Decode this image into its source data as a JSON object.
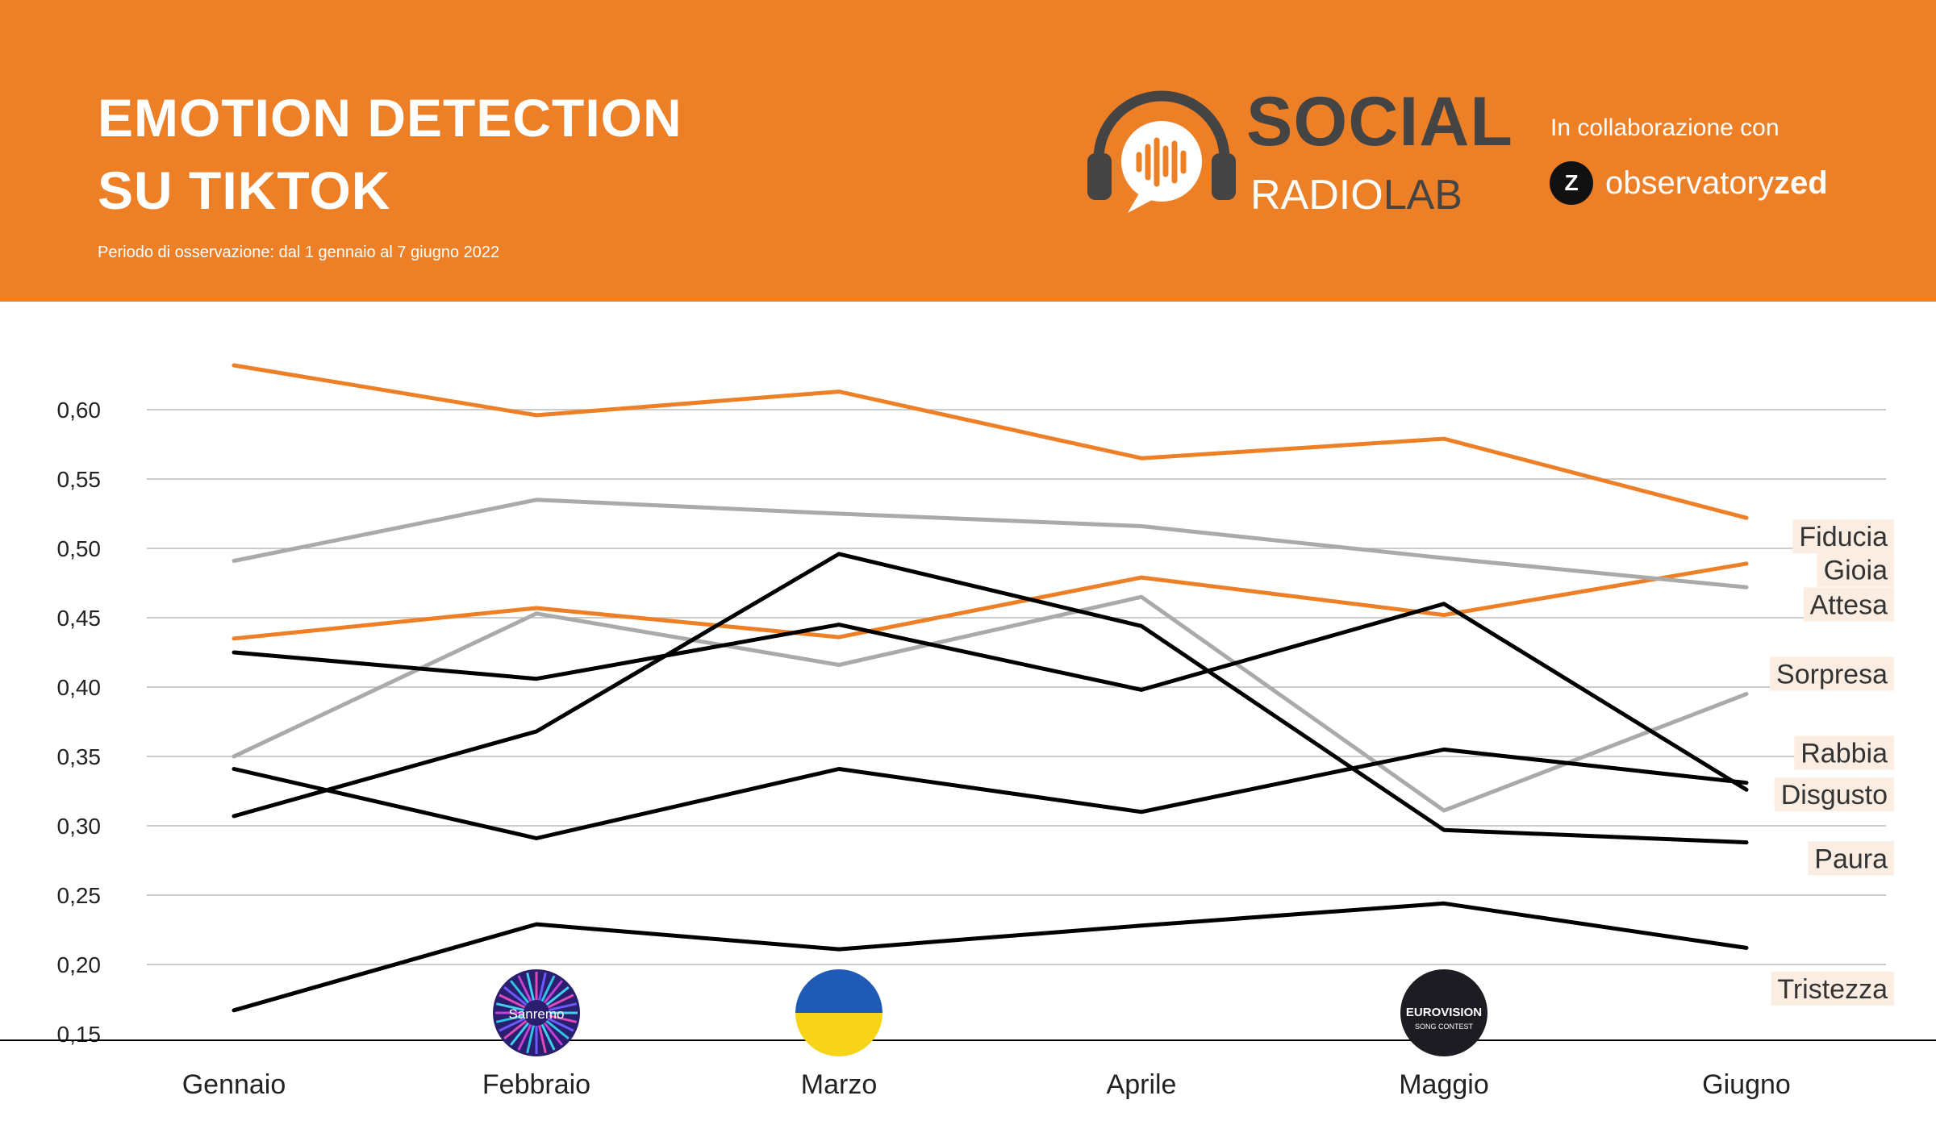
{
  "header": {
    "title_line1": "EMOTION DETECTION",
    "title_line2": "SU TIKTOK",
    "subtitle": "Periodo di osservazione: dal 1 gennaio al 7 giugno 2022",
    "brand_social": "SOCIAL",
    "brand_radio": "RADIO",
    "brand_lab": "LAB",
    "collab_text": "In collaborazione con",
    "partner_icon": "Z",
    "partner_name_light": "observatory",
    "partner_name_bold": "zed",
    "colors": {
      "background": "#ED7F27",
      "text": "#FFFFFF",
      "dark": "#444444"
    }
  },
  "chart_data": {
    "type": "line",
    "categories": [
      "Gennaio",
      "Febbraio",
      "Marzo",
      "Aprile",
      "Maggio",
      "Giugno"
    ],
    "y_ticks": [
      "0,15",
      "0,20",
      "0,25",
      "0,30",
      "0,35",
      "0,40",
      "0,45",
      "0,50",
      "0,55",
      "0,60"
    ],
    "ylim": [
      0.15,
      0.65
    ],
    "grid": true,
    "legend_placement": "right, labels at line ends",
    "event_icons": [
      {
        "category": "Febbraio",
        "icon": "sanremo-icon",
        "label": "Sanremo"
      },
      {
        "category": "Marzo",
        "icon": "ukraine-flag-icon",
        "label": ""
      },
      {
        "category": "Maggio",
        "icon": "eurovision-icon",
        "label": "EUROVISION",
        "sublabel": "SONG CONTEST"
      }
    ],
    "series": [
      {
        "name": "Fiducia",
        "color": "#ED7F27",
        "values": [
          0.632,
          0.596,
          0.613,
          0.565,
          0.579,
          0.522
        ],
        "label_value": 0.508
      },
      {
        "name": "Gioia",
        "color": "#ED7F27",
        "values": [
          0.435,
          0.457,
          0.436,
          0.479,
          0.452,
          0.489
        ],
        "label_value": 0.484
      },
      {
        "name": "Attesa",
        "color": "#AAAAAA",
        "values": [
          0.491,
          0.535,
          0.525,
          0.516,
          0.493,
          0.472
        ],
        "label_value": 0.459
      },
      {
        "name": "Sorpresa",
        "color": "#AAAAAA",
        "values": [
          0.35,
          0.453,
          0.416,
          0.465,
          0.311,
          0.395
        ],
        "label_value": 0.409
      },
      {
        "name": "Rabbia",
        "color": "#000000",
        "values": [
          0.307,
          0.368,
          0.496,
          0.444,
          0.297,
          0.288
        ],
        "label_value": 0.352
      },
      {
        "name": "Disgusto",
        "color": "#000000",
        "values": [
          0.425,
          0.406,
          0.445,
          0.398,
          0.46,
          0.326
        ],
        "label_value": 0.322
      },
      {
        "name": "Paura",
        "color": "#000000",
        "values": [
          0.341,
          0.291,
          0.341,
          0.31,
          0.355,
          0.331
        ],
        "label_value": 0.276
      },
      {
        "name": "Tristezza",
        "color": "#000000",
        "values": [
          0.167,
          0.229,
          0.211,
          0.228,
          0.244,
          0.212
        ],
        "label_value": 0.182
      }
    ]
  }
}
